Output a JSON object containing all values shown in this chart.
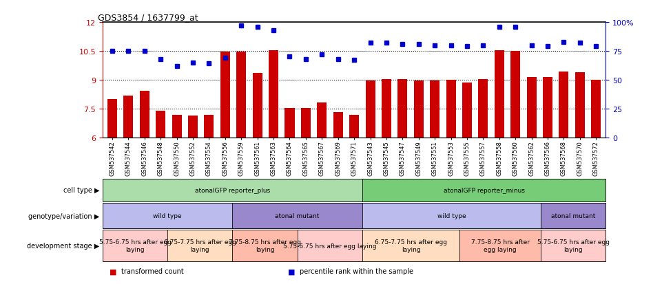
{
  "title": "GDS3854 / 1637799_at",
  "samples": [
    "GSM537542",
    "GSM537544",
    "GSM537546",
    "GSM537548",
    "GSM537550",
    "GSM537552",
    "GSM537554",
    "GSM537556",
    "GSM537559",
    "GSM537561",
    "GSM537563",
    "GSM537564",
    "GSM537565",
    "GSM537567",
    "GSM537569",
    "GSM537571",
    "GSM537543",
    "GSM537545",
    "GSM537547",
    "GSM537549",
    "GSM537551",
    "GSM537553",
    "GSM537555",
    "GSM537557",
    "GSM537558",
    "GSM537560",
    "GSM537562",
    "GSM537566",
    "GSM537568",
    "GSM537570",
    "GSM537572"
  ],
  "bar_values": [
    7.98,
    8.18,
    8.43,
    7.38,
    7.18,
    7.13,
    7.18,
    10.48,
    10.45,
    9.35,
    10.55,
    7.52,
    7.52,
    7.82,
    7.32,
    7.18,
    8.95,
    9.05,
    9.05,
    8.95,
    8.95,
    9.0,
    8.85,
    9.05,
    10.55,
    10.5,
    9.15,
    9.15,
    9.42,
    9.4,
    9.0
  ],
  "percentile_values": [
    75,
    75,
    75,
    68,
    62,
    65,
    64,
    69,
    97,
    96,
    93,
    70,
    68,
    72,
    68,
    67,
    82,
    82,
    81,
    81,
    80,
    80,
    79,
    80,
    96,
    96,
    80,
    79,
    83,
    82,
    79
  ],
  "ylim_left": [
    6,
    12
  ],
  "ylim_right": [
    0,
    100
  ],
  "yticks_left": [
    6,
    7.5,
    9,
    10.5,
    12
  ],
  "yticks_right": [
    0,
    25,
    50,
    75,
    100
  ],
  "ytick_labels_right": [
    "0",
    "25",
    "50",
    "75",
    "100%"
  ],
  "hlines": [
    7.5,
    9.0,
    10.5
  ],
  "bar_color": "#cc0000",
  "percentile_color": "#0000cc",
  "bar_width": 0.6,
  "cell_type_groups": [
    {
      "label": "atonalGFP reporter_plus",
      "start": 0,
      "end": 15,
      "color": "#aaddaa"
    },
    {
      "label": "atonalGFP reporter_minus",
      "start": 16,
      "end": 30,
      "color": "#77cc77"
    }
  ],
  "genotype_groups": [
    {
      "label": "wild type",
      "start": 0,
      "end": 7,
      "color": "#bbbbee"
    },
    {
      "label": "atonal mutant",
      "start": 8,
      "end": 15,
      "color": "#9988cc"
    },
    {
      "label": "wild type",
      "start": 16,
      "end": 26,
      "color": "#bbbbee"
    },
    {
      "label": "atonal mutant",
      "start": 27,
      "end": 30,
      "color": "#9988cc"
    }
  ],
  "dev_stage_groups": [
    {
      "label": "5.75-6.75 hrs after egg\nlaying",
      "start": 0,
      "end": 3,
      "color": "#ffcccc"
    },
    {
      "label": "6.75-7.75 hrs after egg\nlaying",
      "start": 4,
      "end": 7,
      "color": "#ffddc0"
    },
    {
      "label": "7.75-8.75 hrs after egg\nlaying",
      "start": 8,
      "end": 11,
      "color": "#ffbbaa"
    },
    {
      "label": "5.75-6.75 hrs after egg laying",
      "start": 12,
      "end": 15,
      "color": "#ffcccc"
    },
    {
      "label": "6.75-7.75 hrs after egg\nlaying",
      "start": 16,
      "end": 21,
      "color": "#ffddc0"
    },
    {
      "label": "7.75-8.75 hrs after\negg laying",
      "start": 22,
      "end": 26,
      "color": "#ffbbaa"
    },
    {
      "label": "5.75-6.75 hrs after egg\nlaying",
      "start": 27,
      "end": 30,
      "color": "#ffcccc"
    }
  ],
  "row_labels": [
    "cell type",
    "genotype/variation",
    "development stage"
  ],
  "legend_items": [
    {
      "label": "transformed count",
      "color": "#cc0000"
    },
    {
      "label": "percentile rank within the sample",
      "color": "#0000cc"
    }
  ]
}
